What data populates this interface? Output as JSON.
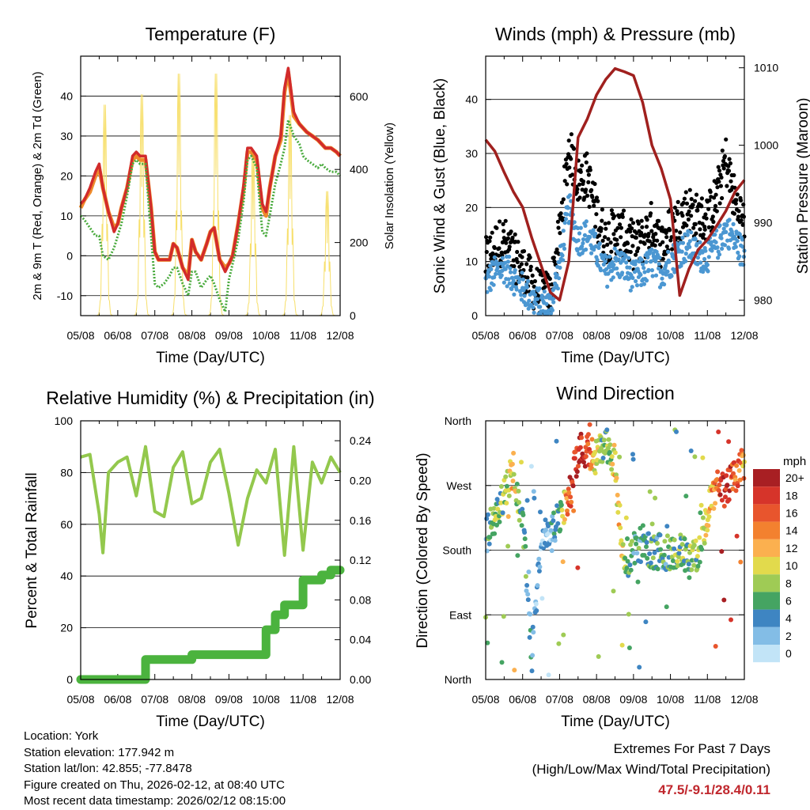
{
  "chart_data": [
    {
      "type": "line",
      "title": "Temperature (F)",
      "xlabel": "Time (Day/UTC)",
      "ylabel": "2m & 9m T (Red, Orange) & 2m Td (Green)",
      "y2label": "Solar Insolation (Yellow)",
      "categories": [
        "05/08",
        "06/08",
        "07/08",
        "08/08",
        "09/08",
        "10/08",
        "11/08",
        "12/08"
      ],
      "ylim": [
        -15,
        50
      ],
      "yticks": [
        "-10",
        "0",
        "10",
        "20",
        "30",
        "40"
      ],
      "y2lim": [
        0,
        710
      ],
      "y2ticks": [
        "0",
        "200",
        "400",
        "600"
      ],
      "x": [
        0,
        0.1,
        0.25,
        0.4,
        0.5,
        0.6,
        0.75,
        0.9,
        1.0,
        1.1,
        1.25,
        1.4,
        1.5,
        1.6,
        1.75,
        1.9,
        2.0,
        2.1,
        2.25,
        2.4,
        2.5,
        2.6,
        2.75,
        2.9,
        3.0,
        3.1,
        3.25,
        3.4,
        3.5,
        3.6,
        3.75,
        3.9,
        4.0,
        4.1,
        4.25,
        4.4,
        4.5,
        4.6,
        4.75,
        4.9,
        5.0,
        5.1,
        5.25,
        5.4,
        5.5,
        5.6,
        5.75,
        5.9,
        6.0,
        6.1,
        6.25,
        6.4,
        6.5,
        6.6,
        6.75,
        6.9,
        7.0
      ],
      "series": [
        {
          "name": "2m T",
          "values": [
            13,
            14,
            17,
            21,
            23,
            17,
            11,
            6,
            8,
            12,
            17,
            25,
            26,
            25,
            25,
            12,
            1,
            -1,
            -1,
            -1,
            3,
            2,
            -3,
            -6,
            4,
            1,
            -1,
            3,
            6,
            7,
            -1,
            -4,
            -2,
            0,
            8,
            18,
            27,
            27,
            25,
            13,
            11,
            17,
            25,
            30,
            42,
            47,
            36,
            33,
            32,
            31,
            30,
            29,
            28,
            27,
            27,
            26,
            25
          ]
        },
        {
          "name": "9m T",
          "values": [
            12,
            14,
            16,
            20,
            22,
            17,
            11,
            7,
            8,
            12,
            17,
            24,
            25,
            24,
            24,
            12,
            1,
            -1,
            -1,
            -1,
            3,
            2,
            -3,
            -5,
            4,
            1,
            -1,
            3,
            6,
            7,
            -1,
            -3,
            -2,
            0,
            8,
            17,
            26,
            26,
            24,
            12,
            10,
            17,
            25,
            29,
            41,
            46,
            35,
            33,
            32,
            31,
            30,
            29,
            28,
            27,
            27,
            26,
            25
          ]
        },
        {
          "name": "2m Td",
          "values": [
            10,
            9,
            7,
            5,
            5,
            0,
            -1,
            2,
            5,
            8,
            15,
            23,
            24,
            23,
            23,
            5,
            -7,
            -8,
            -7,
            -5,
            -3,
            -3,
            -7,
            -10,
            -4,
            -4,
            -8,
            -6,
            -5,
            -7,
            -11,
            -14,
            -6,
            -2,
            4,
            14,
            24,
            25,
            22,
            6,
            5,
            10,
            18,
            23,
            27,
            34,
            30,
            28,
            25,
            24,
            23,
            22,
            23,
            22,
            21,
            21,
            20
          ]
        }
      ],
      "insolation_peaks": [
        {
          "day": "05/08",
          "value": 610
        },
        {
          "day": "06/08",
          "value": 640
        },
        {
          "day": "07/08",
          "value": 700
        },
        {
          "day": "08/08",
          "value": 700
        },
        {
          "day": "09/08",
          "value": 480
        },
        {
          "day": "10/08",
          "value": 580
        },
        {
          "day": "11/08",
          "value": 360
        }
      ]
    },
    {
      "type": "scatter",
      "title": "Winds (mph) & Pressure (mb)",
      "xlabel": "Time (Day/UTC)",
      "ylabel": "Sonic Wind & Gust (Blue, Black)",
      "y2label": "Station Pressure (Maroon)",
      "categories": [
        "05/08",
        "06/08",
        "07/08",
        "08/08",
        "09/08",
        "10/08",
        "11/08",
        "12/08"
      ],
      "ylim": [
        0,
        48
      ],
      "yticks": [
        "0",
        "10",
        "20",
        "30",
        "40"
      ],
      "y2lim": [
        978,
        1011.5
      ],
      "y2ticks": [
        "980",
        "990",
        "1000",
        "1010"
      ],
      "x": [
        0,
        0.25,
        0.5,
        0.75,
        1.0,
        1.25,
        1.5,
        1.75,
        2.0,
        2.25,
        2.5,
        2.75,
        3.0,
        3.25,
        3.5,
        3.75,
        4.0,
        4.25,
        4.5,
        4.75,
        5.0,
        5.25,
        5.5,
        5.75,
        6.0,
        6.25,
        6.5,
        6.75,
        7.0
      ],
      "series": [
        {
          "name": "Wind",
          "values": [
            6,
            8,
            9,
            7,
            5,
            3,
            2,
            2,
            9,
            20,
            14,
            15,
            12,
            8,
            10,
            9,
            7,
            8,
            10,
            8,
            10,
            12,
            13,
            11,
            11,
            13,
            16,
            14,
            11
          ]
        },
        {
          "name": "Gust",
          "values": [
            9,
            12,
            13,
            10,
            8,
            5,
            3,
            3,
            14,
            30,
            24,
            25,
            18,
            13,
            15,
            14,
            12,
            13,
            16,
            12,
            15,
            17,
            19,
            17,
            17,
            21,
            28,
            20,
            16
          ]
        },
        {
          "name": "Station Pressure",
          "values": [
            1000.7,
            999.2,
            996.5,
            994,
            992,
            988,
            984.5,
            981,
            980,
            985,
            1001,
            1003.4,
            1006.5,
            1008.5,
            1009.9,
            1009.5,
            1009,
            1005.5,
            1000,
            997,
            993,
            980.6,
            984,
            986.5,
            987.8,
            989.6,
            991.5,
            994,
            995.5
          ]
        }
      ]
    },
    {
      "type": "line",
      "title": "Relative Humidity (%) & Precipitation (in)",
      "xlabel": "Time (Day/UTC)",
      "ylabel": "Percent & Total Rainfall",
      "categories": [
        "05/08",
        "06/08",
        "07/08",
        "08/08",
        "09/08",
        "10/08",
        "11/08",
        "12/08"
      ],
      "ylim": [
        0,
        100
      ],
      "yticks": [
        "0",
        "20",
        "40",
        "60",
        "80",
        "100"
      ],
      "y2lim": [
        0,
        0.26
      ],
      "y2ticks": [
        "0.00",
        "0.04",
        "0.08",
        "0.12",
        "0.16",
        "0.20",
        "0.24"
      ],
      "x": [
        0,
        0.25,
        0.5,
        0.6,
        0.75,
        1.0,
        1.25,
        1.5,
        1.75,
        2.0,
        2.25,
        2.5,
        2.75,
        3.0,
        3.25,
        3.5,
        3.75,
        4.0,
        4.25,
        4.5,
        4.75,
        5.0,
        5.25,
        5.5,
        5.75,
        6.0,
        6.25,
        6.5,
        6.75,
        7.0
      ],
      "series": [
        {
          "name": "Relative Humidity",
          "values": [
            86,
            87,
            64,
            49,
            80,
            84,
            86,
            71,
            90,
            65,
            63,
            82,
            88,
            68,
            70,
            84,
            89,
            72,
            52,
            70,
            81,
            76,
            89,
            48,
            90,
            50,
            84,
            76,
            86,
            80
          ]
        },
        {
          "name": "Total Rainfall",
          "step": true,
          "values": [
            0,
            0,
            0,
            0,
            0,
            0,
            0,
            0,
            0.02,
            0.02,
            0.02,
            0.02,
            0.02,
            0.025,
            0.025,
            0.025,
            0.025,
            0.025,
            0.025,
            0.025,
            0.025,
            0.05,
            0.065,
            0.075,
            0.075,
            0.1,
            0.1,
            0.105,
            0.11,
            0.11
          ]
        }
      ]
    },
    {
      "type": "scatter",
      "title": "Wind Direction",
      "xlabel": "Time (Day/UTC)",
      "ylabel": "Direction (Colored By Speed)",
      "categories": [
        "05/08",
        "06/08",
        "07/08",
        "08/08",
        "09/08",
        "10/08",
        "11/08",
        "12/08"
      ],
      "ylim": [
        0,
        360
      ],
      "yticks": [
        "North",
        "East",
        "South",
        "West",
        "North"
      ],
      "x": [
        0,
        0.25,
        0.5,
        0.75,
        1.0,
        1.25,
        1.5,
        1.75,
        2.0,
        2.25,
        2.5,
        2.75,
        3.0,
        3.25,
        3.5,
        3.75,
        4.0,
        4.25,
        4.5,
        4.75,
        5.0,
        5.25,
        5.5,
        5.75,
        6.0,
        6.25,
        6.5,
        6.75,
        7.0
      ],
      "series": [
        {
          "name": "Direction (deg)",
          "values": [
            200,
            225,
            255,
            295,
            220,
            30,
            195,
            200,
            225,
            250,
            320,
            320,
            310,
            330,
            300,
            150,
            185,
            190,
            175,
            180,
            175,
            185,
            160,
            175,
            230,
            270,
            270,
            280,
            300
          ]
        },
        {
          "name": "Speed (mph)",
          "values": [
            5,
            7,
            8,
            11,
            6,
            3,
            2,
            2,
            7,
            16,
            19,
            18,
            9,
            6,
            11,
            9,
            5,
            4,
            6,
            5,
            6,
            7,
            6,
            7,
            10,
            15,
            19,
            16,
            12
          ]
        }
      ],
      "colorbar": {
        "title": "mph",
        "labels": [
          "20+",
          "18",
          "16",
          "14",
          "12",
          "10",
          "8",
          "6",
          "4",
          "2",
          "0"
        ],
        "colors": [
          "#a81f23",
          "#d6342a",
          "#e8552d",
          "#f3812f",
          "#fbb04f",
          "#e2da4c",
          "#9fcb55",
          "#45a462",
          "#3e85c2",
          "#83bde6",
          "#c2e4f7"
        ]
      }
    }
  ],
  "footer": {
    "location": "Location: York",
    "elevation": "Station elevation: 177.942 m",
    "latlon": "Station lat/lon: 42.855; -77.8478",
    "created": "Figure created on Thu, 2026-02-12, at 08:40 UTC",
    "recent": "Most recent data timestamp: 2026/02/12 08:15:00"
  },
  "extremes": {
    "line1": "Extremes For Past 7 Days",
    "line2": "(High/Low/Max Wind/Total Precipitation)",
    "values": "47.5/-9.1/28.4/0.11"
  }
}
